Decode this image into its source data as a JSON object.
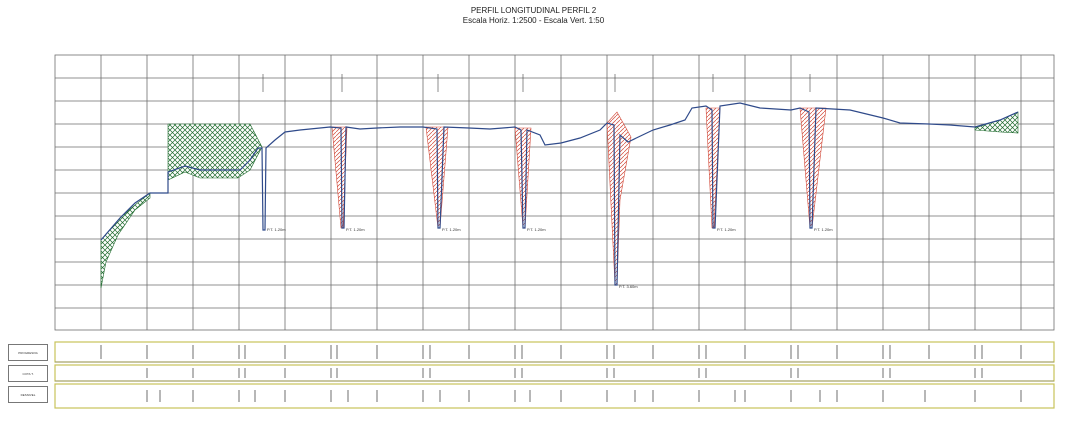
{
  "title": "PERFIL LONGITUDINAL PERFIL 2",
  "subtitle": "Escala Horiz. 1:2500 - Escala Vert. 1:50",
  "colors": {
    "grid": "#6f6f6f",
    "terrain": "#2f4a8a",
    "fill_hatch": "#1f6b2e",
    "fill_cut": "#d24a3a",
    "band": "#c8c35a"
  },
  "band_labels": [
    "PROGRESIVA",
    "COTA T.",
    "DESNIVEL"
  ],
  "cut_notes": [
    "P.T. 1.20m",
    "P.T. 1.20m",
    "P.T. 1.20m",
    "P.T. 1.20m",
    "P.T. 3.60m",
    "P.T. 1.20m",
    "P.T. 1.20m"
  ]
}
